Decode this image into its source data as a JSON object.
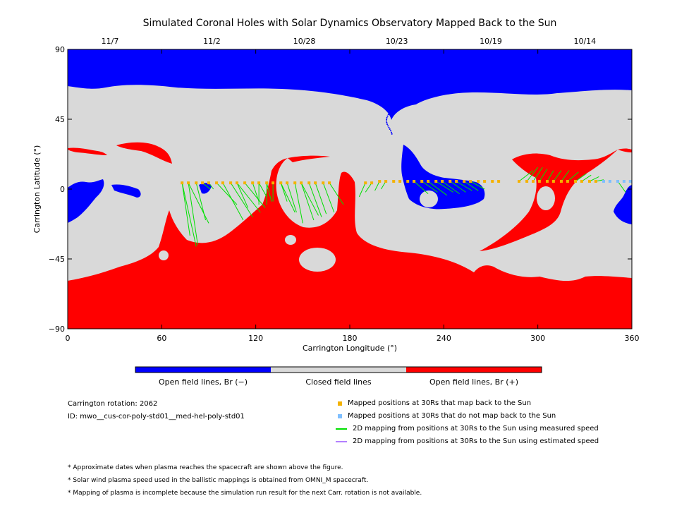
{
  "chart_data": {
    "type": "map",
    "title": "Simulated Coronal Holes with Solar Dynamics Observatory Mapped Back to the Sun",
    "xlabel": "Carrington Longitude (°)",
    "ylabel": "Carrington Latitude (°)",
    "xlim": [
      0,
      360
    ],
    "ylim": [
      -90,
      90
    ],
    "x_ticks": [
      "0",
      "60",
      "120",
      "180",
      "240",
      "300",
      "360"
    ],
    "y_ticks": [
      "90",
      "45",
      "0",
      "−45",
      "−90"
    ],
    "x_tick_values": [
      0,
      60,
      120,
      180,
      240,
      300,
      360
    ],
    "y_tick_values": [
      90,
      45,
      0,
      -45,
      -90
    ],
    "top_dates": [
      {
        "label": "11/7",
        "lon": 27
      },
      {
        "label": "11/2",
        "lon": 92
      },
      {
        "label": "10/28",
        "lon": 151
      },
      {
        "label": "10/23",
        "lon": 210
      },
      {
        "label": "10/19",
        "lon": 270
      },
      {
        "label": "10/14",
        "lon": 330
      }
    ],
    "colors": {
      "open_negative": "#0000ff",
      "closed": "#d9d9d9",
      "open_positive": "#ff0000",
      "mapped_back": "#f4b200",
      "not_mapped": "#7fbfff",
      "measured_speed": "#00e000",
      "estimated_speed": "#b380ff"
    },
    "colorbar_labels": [
      "Open field lines, Br (−)",
      "Closed field lines",
      "Open field lines, Br (+)"
    ],
    "mapped_points": [
      {
        "lon": 73,
        "lat": 4,
        "to": [
          [
            78,
            -30
          ],
          [
            82,
            -37
          ]
        ]
      },
      {
        "lon": 77,
        "lat": 4,
        "to": [
          [
            83,
            -36
          ],
          [
            90,
            -22
          ]
        ]
      },
      {
        "lon": 82,
        "lat": 4,
        "to": [
          [
            88,
            -20
          ]
        ]
      },
      {
        "lon": 86,
        "lat": 4,
        "to": [
          [
            91,
            0
          ]
        ]
      },
      {
        "lon": 90,
        "lat": 4,
        "to": [
          [
            93,
            0
          ]
        ]
      },
      {
        "lon": 95,
        "lat": 4,
        "to": [
          [
            108,
            -10
          ]
        ]
      },
      {
        "lon": 99,
        "lat": 4,
        "to": [
          [
            112,
            -20
          ]
        ]
      },
      {
        "lon": 104,
        "lat": 4,
        "to": [
          [
            118,
            -18
          ]
        ]
      },
      {
        "lon": 108,
        "lat": 4,
        "to": [
          [
            115,
            -12
          ],
          [
            123,
            -15
          ]
        ]
      },
      {
        "lon": 113,
        "lat": 4,
        "to": [
          [
            126,
            -12
          ]
        ]
      },
      {
        "lon": 118,
        "lat": 4,
        "to": [
          [
            122,
            -8
          ]
        ]
      },
      {
        "lon": 122,
        "lat": 4,
        "to": [
          [
            122,
            -10
          ],
          [
            127,
            -5
          ]
        ]
      },
      {
        "lon": 127,
        "lat": 4,
        "to": [
          [
            127,
            -10
          ],
          [
            130,
            -8
          ]
        ]
      },
      {
        "lon": 131,
        "lat": 4,
        "to": [
          [
            131,
            -8
          ]
        ]
      },
      {
        "lon": 136,
        "lat": 4,
        "to": [
          [
            140,
            -8
          ],
          [
            145,
            -15
          ]
        ]
      },
      {
        "lon": 140,
        "lat": 4,
        "to": [
          [
            146,
            -15
          ]
        ]
      },
      {
        "lon": 145,
        "lat": 4,
        "to": [
          [
            150,
            -22
          ]
        ]
      },
      {
        "lon": 149,
        "lat": 4,
        "to": [
          [
            157,
            -20
          ],
          [
            160,
            -17
          ]
        ]
      },
      {
        "lon": 154,
        "lat": 4,
        "to": [
          [
            162,
            -18
          ]
        ]
      },
      {
        "lon": 158,
        "lat": 4,
        "to": [
          [
            165,
            -16
          ]
        ]
      },
      {
        "lon": 163,
        "lat": 4,
        "to": [
          [
            170,
            -15
          ]
        ]
      },
      {
        "lon": 167,
        "lat": 4,
        "to": [
          [
            176,
            -10
          ]
        ]
      },
      {
        "lon": 190,
        "lat": 4,
        "to": [
          [
            186,
            -5
          ]
        ]
      },
      {
        "lon": 194,
        "lat": 4,
        "to": [
          [
            190,
            -2
          ]
        ]
      },
      {
        "lon": 199,
        "lat": 5,
        "to": [
          [
            196,
            -1
          ]
        ]
      },
      {
        "lon": 203,
        "lat": 5,
        "to": [
          [
            200,
            0
          ]
        ]
      },
      {
        "lon": 208,
        "lat": 5
      },
      {
        "lon": 212,
        "lat": 5
      },
      {
        "lon": 217,
        "lat": 5
      },
      {
        "lon": 221,
        "lat": 5,
        "to": [
          [
            230,
            -3
          ]
        ]
      },
      {
        "lon": 226,
        "lat": 5,
        "to": [
          [
            236,
            -2
          ]
        ]
      },
      {
        "lon": 230,
        "lat": 5,
        "to": [
          [
            242,
            -4
          ]
        ]
      },
      {
        "lon": 235,
        "lat": 5,
        "to": [
          [
            246,
            -2
          ]
        ]
      },
      {
        "lon": 239,
        "lat": 5,
        "to": [
          [
            250,
            -3
          ]
        ]
      },
      {
        "lon": 244,
        "lat": 5,
        "to": [
          [
            254,
            -2
          ]
        ]
      },
      {
        "lon": 248,
        "lat": 5,
        "to": [
          [
            258,
            -1
          ]
        ]
      },
      {
        "lon": 253,
        "lat": 5,
        "to": [
          [
            262,
            -1
          ]
        ]
      },
      {
        "lon": 257,
        "lat": 5,
        "to": [
          [
            266,
            0
          ]
        ]
      },
      {
        "lon": 262,
        "lat": 5
      },
      {
        "lon": 266,
        "lat": 5
      },
      {
        "lon": 271,
        "lat": 5
      },
      {
        "lon": 275,
        "lat": 5
      },
      {
        "lon": 288,
        "lat": 5,
        "to": [
          [
            297,
            12
          ]
        ]
      },
      {
        "lon": 293,
        "lat": 5,
        "to": [
          [
            300,
            14
          ]
        ]
      },
      {
        "lon": 297,
        "lat": 5,
        "to": [
          [
            303,
            14
          ]
        ]
      },
      {
        "lon": 301,
        "lat": 5,
        "to": [
          [
            306,
            13
          ]
        ]
      },
      {
        "lon": 306,
        "lat": 5,
        "to": [
          [
            310,
            12
          ]
        ]
      },
      {
        "lon": 310,
        "lat": 5,
        "to": [
          [
            315,
            12
          ]
        ]
      },
      {
        "lon": 315,
        "lat": 5,
        "to": [
          [
            320,
            12
          ]
        ]
      },
      {
        "lon": 319,
        "lat": 5,
        "to": [
          [
            326,
            11
          ]
        ]
      },
      {
        "lon": 324,
        "lat": 5,
        "to": [
          [
            331,
            10
          ]
        ]
      },
      {
        "lon": 328,
        "lat": 5,
        "to": [
          [
            334,
            9
          ]
        ]
      },
      {
        "lon": 333,
        "lat": 5,
        "to": [
          [
            339,
            8
          ]
        ]
      },
      {
        "lon": 337,
        "lat": 5,
        "to": [
          [
            342,
            6
          ]
        ]
      }
    ],
    "unmapped_points": [
      {
        "lon": 342,
        "lat": 5
      },
      {
        "lon": 346,
        "lat": 5
      },
      {
        "lon": 351,
        "lat": 5,
        "to": [
          [
            356,
            -2
          ]
        ]
      },
      {
        "lon": 355,
        "lat": 5
      },
      {
        "lon": 359,
        "lat": 5
      }
    ]
  },
  "info": {
    "carrington_rotation": "Carrington rotation: 2062",
    "id": "ID: mwo__cus-cor-poly-std01__med-hel-poly-std01"
  },
  "legend": [
    {
      "label": "Mapped positions at 30Rs that map back to the Sun",
      "kind": "square",
      "color": "#f4b200"
    },
    {
      "label": "Mapped positions at 30Rs that do not map back to the Sun",
      "kind": "square",
      "color": "#7fbfff"
    },
    {
      "label": "2D mapping from positions at 30Rs to the Sun using measured speed",
      "kind": "line",
      "color": "#00e000"
    },
    {
      "label": "2D mapping from positions at 30Rs to the Sun using estimated speed",
      "kind": "line",
      "color": "#b380ff"
    }
  ],
  "notes": [
    "* Approximate dates when plasma reaches the spacecraft are shown above the figure.",
    "* Solar wind plasma speed used in the ballistic mappings is obtained from OMNI_M spacecraft.",
    "* Mapping of plasma is incomplete because the simulation run result for the next Carr. rotation is not available."
  ]
}
